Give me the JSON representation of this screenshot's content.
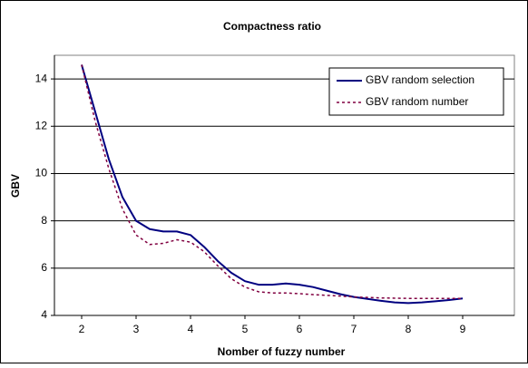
{
  "chart_data": {
    "type": "line",
    "title": "Compactness ratio",
    "x_label": "Nomber of fuzzy number",
    "y_label": "GBV",
    "x": [
      2,
      2.25,
      2.5,
      2.75,
      3,
      3.25,
      3.5,
      3.75,
      4,
      4.25,
      4.5,
      4.75,
      5,
      5.25,
      5.5,
      5.75,
      6,
      6.25,
      6.5,
      6.75,
      7,
      7.25,
      7.5,
      7.75,
      8,
      8.25,
      8.5,
      8.75,
      9
    ],
    "series": [
      {
        "name": "GBV random selection",
        "color": "#000080",
        "dash": false,
        "values": [
          14.6,
          12.6,
          10.6,
          9.0,
          8.0,
          7.65,
          7.55,
          7.55,
          7.4,
          6.9,
          6.3,
          5.8,
          5.45,
          5.3,
          5.3,
          5.35,
          5.3,
          5.2,
          5.05,
          4.9,
          4.78,
          4.7,
          4.62,
          4.55,
          4.52,
          4.55,
          4.6,
          4.65,
          4.72
        ]
      },
      {
        "name": "GBV random number",
        "color": "#800040",
        "dash": true,
        "values": [
          14.6,
          12.2,
          10.2,
          8.5,
          7.4,
          7.0,
          7.05,
          7.2,
          7.1,
          6.7,
          6.1,
          5.55,
          5.2,
          5.0,
          4.95,
          4.95,
          4.92,
          4.88,
          4.85,
          4.82,
          4.78,
          4.76,
          4.74,
          4.73,
          4.72,
          4.72,
          4.72,
          4.72,
          4.72
        ]
      }
    ],
    "xlim": [
      1.5,
      9.95
    ],
    "xticks": [
      2,
      3,
      4,
      5,
      6,
      7,
      8,
      9
    ],
    "ylim": [
      4,
      15
    ],
    "yticks": [
      4,
      6,
      8,
      10,
      12,
      14
    ],
    "grid": true,
    "legend": "top-right"
  }
}
